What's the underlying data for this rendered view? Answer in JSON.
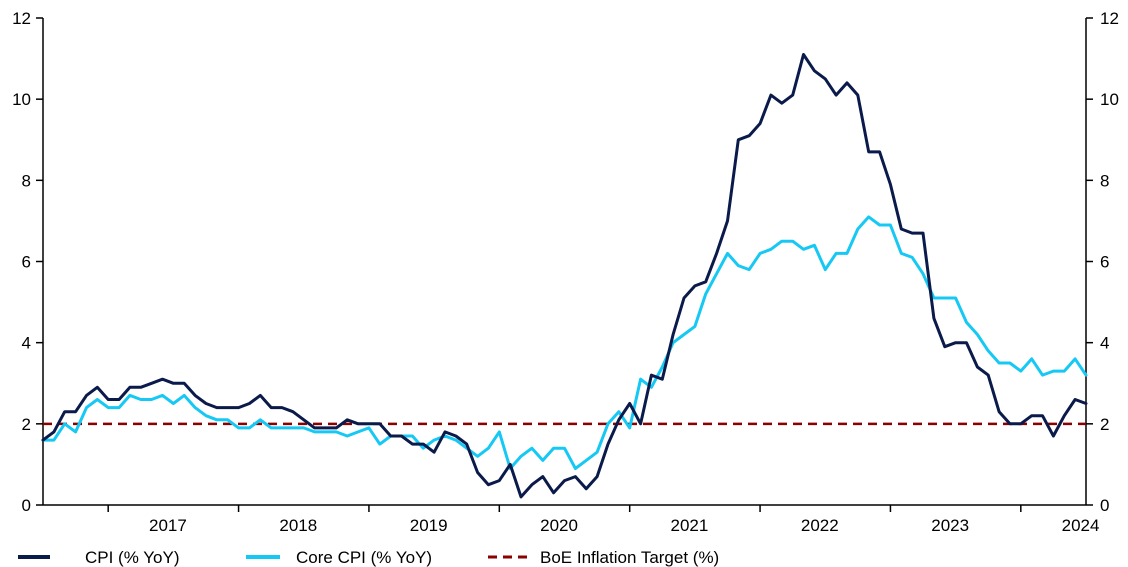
{
  "chart_data": {
    "type": "line",
    "title": "",
    "xlabel": "",
    "ylabel": "",
    "ylim": [
      0,
      12
    ],
    "y_ticks": [
      "0",
      "2",
      "4",
      "6",
      "8",
      "10",
      "12"
    ],
    "secondary_y_ticks": [
      "0",
      "2",
      "4",
      "6",
      "8",
      "10",
      "12"
    ],
    "x_labels": [
      "2017",
      "2018",
      "2019",
      "2020",
      "2021",
      "2022",
      "2023",
      "2024"
    ],
    "x_start": "2016-07",
    "x_end": "2024-08",
    "grid": false,
    "legend_position": "bottom",
    "colors": {
      "cpi": "#0a1a4a",
      "core": "#16c8f4",
      "target": "#8b0000"
    },
    "legend": {
      "cpi": "CPI (% YoY)",
      "core": "Core CPI (% YoY)",
      "target": "BoE Inflation Target (%)"
    },
    "target_value": 2.0,
    "series": [
      {
        "key": "cpi",
        "name": "CPI (% YoY)",
        "values": [
          1.6,
          1.8,
          2.3,
          2.3,
          2.7,
          2.9,
          2.6,
          2.6,
          2.9,
          2.9,
          3.0,
          3.1,
          3.0,
          3.0,
          2.7,
          2.5,
          2.4,
          2.4,
          2.4,
          2.5,
          2.7,
          2.4,
          2.4,
          2.3,
          2.1,
          1.9,
          1.9,
          1.9,
          2.1,
          2.0,
          2.0,
          2.0,
          1.7,
          1.7,
          1.5,
          1.5,
          1.3,
          1.8,
          1.7,
          1.5,
          0.8,
          0.5,
          0.6,
          1.0,
          0.2,
          0.5,
          0.7,
          0.3,
          0.6,
          0.7,
          0.4,
          0.7,
          1.5,
          2.1,
          2.5,
          2.0,
          3.2,
          3.1,
          4.2,
          5.1,
          5.4,
          5.5,
          6.2,
          7.0,
          9.0,
          9.1,
          9.4,
          10.1,
          9.9,
          10.1,
          11.1,
          10.7,
          10.5,
          10.1,
          10.4,
          10.1,
          8.7,
          8.7,
          7.9,
          6.8,
          6.7,
          6.7,
          4.6,
          3.9,
          4.0,
          4.0,
          3.4,
          3.2,
          2.3,
          2.0,
          2.0,
          2.2,
          2.2,
          1.7,
          2.2,
          2.6,
          2.5
        ]
      },
      {
        "key": "core",
        "name": "Core CPI (% YoY)",
        "values": [
          1.6,
          1.6,
          2.0,
          1.8,
          2.4,
          2.6,
          2.4,
          2.4,
          2.7,
          2.6,
          2.6,
          2.7,
          2.5,
          2.7,
          2.4,
          2.2,
          2.1,
          2.1,
          1.9,
          1.9,
          2.1,
          1.9,
          1.9,
          1.9,
          1.9,
          1.8,
          1.8,
          1.8,
          1.7,
          1.8,
          1.9,
          1.5,
          1.7,
          1.7,
          1.7,
          1.4,
          1.6,
          1.7,
          1.6,
          1.4,
          1.2,
          1.4,
          1.8,
          0.9,
          1.2,
          1.4,
          1.1,
          1.4,
          1.4,
          0.9,
          1.1,
          1.3,
          2.0,
          2.3,
          1.9,
          3.1,
          2.9,
          3.4,
          4.0,
          4.2,
          4.4,
          5.2,
          5.7,
          6.2,
          5.9,
          5.8,
          6.2,
          6.3,
          6.5,
          6.5,
          6.3,
          6.4,
          5.8,
          6.2,
          6.2,
          6.8,
          7.1,
          6.9,
          6.9,
          6.2,
          6.1,
          5.7,
          5.1,
          5.1,
          5.1,
          4.5,
          4.2,
          3.8,
          3.5,
          3.5,
          3.3,
          3.6,
          3.2,
          3.3,
          3.3,
          3.6,
          3.2
        ]
      }
    ]
  }
}
